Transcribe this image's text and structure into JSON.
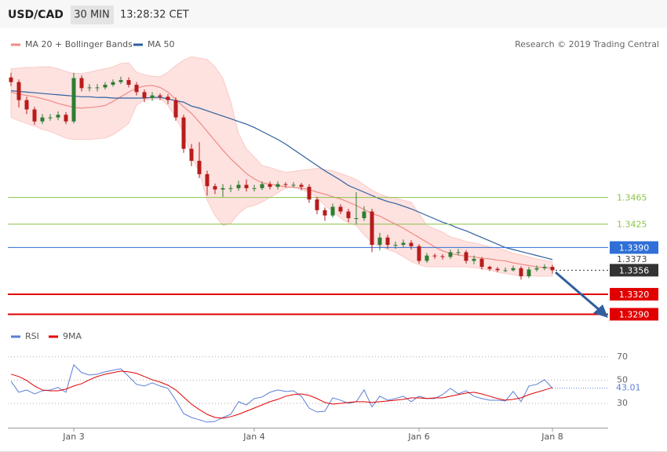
{
  "header": {
    "symbol": "USD/CAD",
    "interval": "30 MIN",
    "time": "13:28:32 CET"
  },
  "credit": "Research © 2019 Trading Central",
  "chart_data": [
    {
      "type": "candlestick",
      "categories": [
        null,
        null,
        null,
        null,
        null,
        null,
        null,
        null,
        "Jan 3",
        null,
        null,
        null,
        null,
        null,
        null,
        null,
        null,
        null,
        null,
        null,
        null,
        null,
        null,
        null,
        null,
        null,
        null,
        null,
        null,
        null,
        null,
        "Jan 4",
        null,
        null,
        null,
        null,
        null,
        null,
        null,
        null,
        null,
        null,
        null,
        null,
        null,
        null,
        null,
        null,
        null,
        null,
        null,
        null,
        "Jan 6",
        null,
        null,
        null,
        null,
        null,
        null,
        null,
        null,
        null,
        null,
        null,
        null,
        null,
        null,
        null,
        null,
        "Jan 8"
      ],
      "open": [
        1.3645,
        1.3638,
        1.3611,
        1.3597,
        1.3579,
        1.3585,
        1.3585,
        1.3589,
        1.3579,
        1.3644,
        1.3629,
        1.363,
        1.363,
        1.3634,
        1.3638,
        1.3641,
        1.3634,
        1.3623,
        1.3614,
        1.3618,
        1.3616,
        1.3611,
        1.3585,
        1.3538,
        1.352,
        1.35,
        1.3482,
        1.3477,
        1.3479,
        1.3479,
        1.3484,
        1.3479,
        1.3479,
        1.3485,
        1.3481,
        1.3485,
        1.3484,
        1.3484,
        1.3481,
        1.3462,
        1.3446,
        1.3438,
        1.3451,
        1.3444,
        1.3434,
        1.3434,
        1.3444,
        1.3394,
        1.3405,
        1.3394,
        1.3394,
        1.3397,
        1.3392,
        1.337,
        1.3378,
        1.3377,
        1.3376,
        1.3383,
        1.3383,
        1.337,
        1.3373,
        1.3361,
        1.3358,
        1.3356,
        1.3356,
        1.3359,
        1.3347,
        1.3357,
        1.3359,
        1.3361
      ],
      "high": [
        1.3652,
        1.3642,
        1.3616,
        1.3601,
        1.359,
        1.359,
        1.3594,
        1.3593,
        1.3652,
        1.3648,
        1.3635,
        1.3635,
        1.3638,
        1.3642,
        1.3646,
        1.3645,
        1.3638,
        1.3627,
        1.3623,
        1.3621,
        1.362,
        1.3615,
        1.3589,
        1.3545,
        1.3548,
        1.3505,
        1.3486,
        1.3485,
        1.3484,
        1.349,
        1.3492,
        1.3484,
        1.3489,
        1.3489,
        1.3489,
        1.3488,
        1.3488,
        1.3487,
        1.3485,
        1.3466,
        1.345,
        1.3456,
        1.3455,
        1.3448,
        1.3473,
        1.3452,
        1.3448,
        1.3412,
        1.3409,
        1.3399,
        1.3402,
        1.3401,
        1.3395,
        1.3382,
        1.3381,
        1.338,
        1.3387,
        1.3388,
        1.3386,
        1.3378,
        1.3376,
        1.3363,
        1.3361,
        1.336,
        1.3363,
        1.3362,
        1.3361,
        1.3363,
        1.3365,
        1.3364
      ],
      "low": [
        1.3632,
        1.36,
        1.359,
        1.3574,
        1.3575,
        1.358,
        1.3581,
        1.3575,
        1.3576,
        1.3624,
        1.3624,
        1.3624,
        1.3627,
        1.3631,
        1.3635,
        1.363,
        1.3618,
        1.3608,
        1.361,
        1.3611,
        1.3605,
        1.358,
        1.3532,
        1.3512,
        1.3494,
        1.3468,
        1.347,
        1.3466,
        1.3473,
        1.3475,
        1.3474,
        1.3474,
        1.3476,
        1.3477,
        1.3477,
        1.348,
        1.348,
        1.3476,
        1.3457,
        1.344,
        1.343,
        1.3435,
        1.344,
        1.3428,
        1.3425,
        1.343,
        1.3383,
        1.3386,
        1.3388,
        1.3388,
        1.339,
        1.3387,
        1.3366,
        1.3367,
        1.3373,
        1.3372,
        1.3373,
        1.3378,
        1.3366,
        1.3365,
        1.3357,
        1.3355,
        1.3353,
        1.3353,
        1.3354,
        1.3342,
        1.3344,
        1.3354,
        1.3356,
        1.3351
      ],
      "close": [
        1.3638,
        1.3611,
        1.3597,
        1.3579,
        1.3585,
        1.3585,
        1.3589,
        1.3579,
        1.3644,
        1.3629,
        1.363,
        1.363,
        1.3634,
        1.3638,
        1.3641,
        1.3634,
        1.3623,
        1.3614,
        1.3618,
        1.3616,
        1.3611,
        1.3585,
        1.3538,
        1.352,
        1.35,
        1.3482,
        1.3477,
        1.3479,
        1.3479,
        1.3484,
        1.3479,
        1.3479,
        1.3485,
        1.3481,
        1.3485,
        1.3484,
        1.3484,
        1.3481,
        1.3462,
        1.3446,
        1.3438,
        1.3451,
        1.3444,
        1.3434,
        1.3434,
        1.3444,
        1.3394,
        1.3405,
        1.3394,
        1.3394,
        1.3397,
        1.3392,
        1.337,
        1.3378,
        1.3377,
        1.3376,
        1.3383,
        1.3383,
        1.337,
        1.3373,
        1.3361,
        1.3358,
        1.3356,
        1.3356,
        1.3359,
        1.3347,
        1.3357,
        1.3359,
        1.3361,
        1.3356
      ],
      "up_color": "#2e7d32",
      "down_color": "#b71c1c",
      "last_color": "#333333",
      "series": [
        {
          "name": "MA 20 + Bollinger Bands",
          "color": "#f08a84",
          "band_color": "#fde2e0",
          "values": [
            1.3623,
            1.362,
            1.3618,
            1.3616,
            1.3613,
            1.361,
            1.3606,
            1.3603,
            1.36,
            1.3599,
            1.36,
            1.3601,
            1.3603,
            1.3609,
            1.3616,
            1.3623,
            1.3629,
            1.3632,
            1.3633,
            1.363,
            1.3623,
            1.3612,
            1.3601,
            1.3591,
            1.3578,
            1.3564,
            1.355,
            1.3536,
            1.3523,
            1.3512,
            1.3501,
            1.3493,
            1.3487,
            1.3485,
            1.3483,
            1.3481,
            1.348,
            1.3479,
            1.3477,
            1.3473,
            1.347,
            1.3466,
            1.3463,
            1.3458,
            1.3453,
            1.3447,
            1.3441,
            1.3437,
            1.3431,
            1.3425,
            1.3419,
            1.3412,
            1.3405,
            1.3398,
            1.3391,
            1.3385,
            1.3381,
            1.3379,
            1.3377,
            1.3376,
            1.3374,
            1.3373,
            1.3371,
            1.337,
            1.3367,
            1.3365,
            1.3363,
            1.3361,
            1.336,
            1.3359
          ],
          "upper": [
            1.3658,
            1.3659,
            1.366,
            1.366,
            1.3661,
            1.3661,
            1.3658,
            1.3654,
            1.3651,
            1.3651,
            1.3653,
            1.3656,
            1.3658,
            1.3661,
            1.3666,
            1.3667,
            1.3653,
            1.3649,
            1.3647,
            1.3646,
            1.3653,
            1.3663,
            1.3671,
            1.3676,
            1.3674,
            1.3672,
            1.3661,
            1.3644,
            1.3609,
            1.3561,
            1.3538,
            1.3526,
            1.3513,
            1.351,
            1.3506,
            1.3503,
            1.3504,
            1.3506,
            1.3507,
            1.3509,
            1.3507,
            1.3505,
            1.3501,
            1.3497,
            1.3492,
            1.3484,
            1.3476,
            1.347,
            1.3466,
            1.3464,
            1.3461,
            1.3458,
            1.3441,
            1.3423,
            1.3418,
            1.3413,
            1.3406,
            1.3403,
            1.3399,
            1.3397,
            1.3394,
            1.3391,
            1.3389,
            1.3386,
            1.3381,
            1.3379,
            1.3376,
            1.3373,
            1.3371,
            1.3369
          ],
          "lower": [
            1.3585,
            1.358,
            1.3576,
            1.3572,
            1.3567,
            1.3564,
            1.3559,
            1.3554,
            1.3552,
            1.3552,
            1.3552,
            1.3553,
            1.3554,
            1.3559,
            1.3567,
            1.3576,
            1.3603,
            1.3611,
            1.3612,
            1.3613,
            1.3603,
            1.3585,
            1.3561,
            1.3526,
            1.3503,
            1.3461,
            1.3438,
            1.3423,
            1.3426,
            1.3441,
            1.345,
            1.3453,
            1.3458,
            1.3465,
            1.3472,
            1.3479,
            1.3481,
            1.3477,
            1.3472,
            1.3465,
            1.3453,
            1.3444,
            1.3434,
            1.3427,
            1.3423,
            1.3409,
            1.3397,
            1.3392,
            1.3387,
            1.3383,
            1.3376,
            1.3369,
            1.3364,
            1.3361,
            1.3361,
            1.3361,
            1.3361,
            1.3361,
            1.3361,
            1.336,
            1.3358,
            1.3356,
            1.3353,
            1.3351,
            1.3349,
            1.3347,
            1.3347,
            1.3347,
            1.3347,
            1.3347
          ]
        },
        {
          "name": "MA 50",
          "color": "#2f5f9e",
          "values": [
            1.3625,
            1.3624,
            1.3623,
            1.3622,
            1.3621,
            1.362,
            1.3619,
            1.3618,
            1.3617,
            1.3616,
            1.3616,
            1.3615,
            1.3615,
            1.3614,
            1.3614,
            1.3614,
            1.3614,
            1.3614,
            1.3615,
            1.3615,
            1.3613,
            1.361,
            1.3608,
            1.3602,
            1.3599,
            1.3595,
            1.3591,
            1.3587,
            1.3583,
            1.3579,
            1.3575,
            1.357,
            1.3564,
            1.3558,
            1.3552,
            1.3545,
            1.3537,
            1.3529,
            1.3521,
            1.3513,
            1.3505,
            1.3498,
            1.3491,
            1.3483,
            1.3478,
            1.3473,
            1.3468,
            1.3463,
            1.3459,
            1.3456,
            1.3452,
            1.3448,
            1.3443,
            1.3438,
            1.3433,
            1.3428,
            1.3424,
            1.3419,
            1.3415,
            1.341,
            1.3405,
            1.34,
            1.3395,
            1.339,
            1.3387,
            1.3384,
            1.3381,
            1.3378,
            1.3375,
            1.3372
          ]
        }
      ],
      "ylim": [
        1.3267,
        1.3714
      ],
      "levels": [
        {
          "value": 1.3465,
          "style": "line",
          "color": "#8bc34a"
        },
        {
          "value": 1.3425,
          "style": "line",
          "color": "#8bc34a"
        },
        {
          "value": 1.339,
          "label": "1.3390",
          "style": "tag",
          "color": "#2f6fd6",
          "width": 1
        },
        {
          "value": 1.3373,
          "style": "text",
          "color": "#444444"
        },
        {
          "value": 1.332,
          "label": "1.3320",
          "style": "tag",
          "color": "#e00000",
          "width": 2
        },
        {
          "value": 1.329,
          "label": "1.3290",
          "style": "tag",
          "color": "#e00000",
          "width": 2
        }
      ]
    },
    {
      "type": "line",
      "series": [
        {
          "name": "RSI",
          "color": "#5b7fd6",
          "values": [
            49.0,
            39.5,
            41.5,
            38.1,
            40.8,
            41.5,
            43.6,
            39.5,
            63.2,
            56.4,
            54.4,
            55.1,
            57.1,
            58.5,
            59.8,
            53.1,
            46.3,
            44.9,
            47.6,
            44.9,
            42.9,
            32.7,
            21.2,
            17.8,
            15.8,
            13.7,
            14.4,
            17.8,
            20.5,
            31.4,
            28.6,
            34.1,
            35.4,
            39.5,
            41.5,
            40.2,
            40.8,
            36.1,
            25.8,
            22.5,
            23.2,
            34.7,
            32.7,
            30.0,
            31.4,
            41.5,
            27.0,
            36.1,
            32.7,
            34.1,
            36.1,
            31.4,
            36.1,
            34.1,
            34.1,
            37.5,
            42.9,
            38.1,
            40.8,
            36.1,
            34.1,
            32.7,
            32.7,
            32.0,
            40.2,
            31.4,
            44.9,
            46.3,
            50.3,
            43.01
          ]
        },
        {
          "name": "9MA",
          "color": "#e00000",
          "values": [
            55.1,
            53.1,
            49.7,
            44.9,
            41.5,
            40.8,
            40.8,
            42.2,
            44.9,
            46.9,
            50.3,
            53.1,
            55.1,
            56.4,
            57.8,
            57.1,
            55.8,
            53.1,
            50.3,
            48.3,
            45.6,
            41.5,
            35.4,
            29.3,
            24.6,
            20.5,
            17.8,
            17.1,
            18.5,
            20.5,
            23.2,
            25.9,
            28.6,
            31.4,
            33.4,
            36.1,
            37.5,
            38.1,
            36.8,
            34.1,
            30.7,
            29.3,
            30.0,
            30.7,
            31.4,
            31.4,
            30.7,
            31.4,
            32.0,
            32.7,
            33.4,
            34.7,
            34.7,
            34.1,
            34.7,
            34.7,
            36.1,
            37.5,
            38.8,
            39.5,
            38.1,
            36.1,
            34.1,
            32.7,
            33.4,
            34.7,
            37.5,
            39.5,
            41.5,
            43.6
          ]
        }
      ],
      "ylim": [
        9,
        80
      ],
      "yticks": [
        30,
        50,
        70
      ],
      "grid": true
    }
  ]
}
